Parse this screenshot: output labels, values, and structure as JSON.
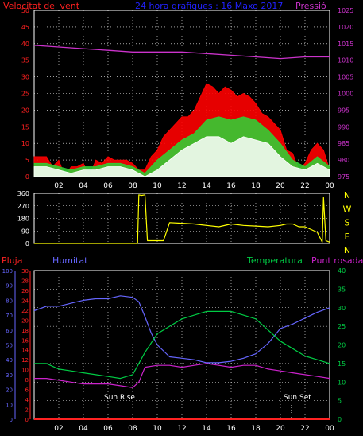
{
  "header": {
    "wind_label": "Velocitat del vent",
    "subtitle": "24 hora grafiques : 16 Maxo 2017",
    "pressure_label": "Pressió"
  },
  "bottom_headers": {
    "rain": "Pluja",
    "humidity": "Humitat",
    "temperature": "Temperatura",
    "dewpoint": "Punt rosada"
  },
  "time_ticks": [
    "02",
    "04",
    "06",
    "08",
    "10",
    "12",
    "14",
    "16",
    "18",
    "20",
    "22",
    "00"
  ],
  "sun": {
    "rise_label": "Sun Rise",
    "set_label": "Sun Set",
    "rise_hour": 6.8,
    "set_hour": 20.9
  },
  "colors": {
    "wind_left": "#ff2020",
    "pressure": "#cc33cc",
    "title": "#2222ff",
    "gust": "#ff0000",
    "avg": "#33cc33",
    "base": "#ffffff",
    "wind_dir": "#ffff00",
    "humidity": "#6666ff",
    "temp": "#00cc44",
    "dew": "#cc22cc",
    "rain": "#ff2222",
    "grid": "#ffffff"
  },
  "chart_data": [
    {
      "type": "line",
      "title": "Velocitat del vent",
      "x_unit": "hour",
      "xlim": [
        0,
        24
      ],
      "ylim_left": [
        0,
        50
      ],
      "yticks_left": [
        0,
        5,
        10,
        15,
        20,
        25,
        30,
        35,
        40,
        45,
        50
      ],
      "ylim_right": [
        975,
        1025
      ],
      "yticks_right": [
        975,
        980,
        985,
        990,
        995,
        1000,
        1005,
        1010,
        1015,
        1020,
        1025
      ],
      "series": [
        {
          "name": "Pressió",
          "axis": "right",
          "color": "#cc33cc",
          "x": [
            0,
            2,
            4,
            6,
            8,
            10,
            12,
            14,
            16,
            18,
            20,
            22,
            24
          ],
          "y": [
            1014.5,
            1014,
            1013.5,
            1013,
            1012.5,
            1012.5,
            1012.5,
            1012,
            1011.5,
            1011,
            1010.5,
            1011,
            1011
          ]
        },
        {
          "name": "",
          "role": "gust",
          "axis": "left",
          "color": "#ff0000",
          "x": [
            0,
            0.5,
            1,
            1.5,
            2,
            2.5,
            3,
            3.5,
            4,
            4.5,
            5,
            5.5,
            6,
            6.5,
            7,
            7.5,
            8,
            8.5,
            9,
            9.5,
            10,
            10.5,
            11,
            11.5,
            12,
            12.5,
            13,
            13.5,
            14,
            14.5,
            15,
            15.5,
            16,
            16.5,
            17,
            17.5,
            18,
            18.5,
            19,
            19.5,
            20,
            20.5,
            21,
            21.5,
            22,
            22.5,
            23,
            23.5,
            24
          ],
          "y": [
            6,
            6,
            6,
            3,
            5,
            0,
            3,
            3,
            4,
            0,
            5,
            4,
            6,
            5,
            5,
            5,
            4,
            2,
            2,
            6,
            8,
            12,
            14,
            16,
            18,
            18,
            20,
            24,
            28,
            27,
            25,
            27,
            26,
            24,
            25,
            24,
            22,
            19,
            18,
            16,
            14,
            8,
            7,
            2,
            4,
            8,
            10,
            8,
            2
          ]
        },
        {
          "name": "",
          "role": "average",
          "axis": "left",
          "color": "#33cc33",
          "x": [
            0,
            1,
            2,
            3,
            4,
            5,
            6,
            7,
            8,
            9,
            10,
            11,
            12,
            13,
            14,
            15,
            16,
            17,
            18,
            19,
            20,
            21,
            22,
            23,
            24
          ],
          "y": [
            4,
            4,
            3,
            2,
            3,
            3,
            4,
            4,
            3,
            1,
            5,
            8,
            11,
            13,
            17,
            18,
            17,
            18,
            17,
            14,
            10,
            5,
            3,
            6,
            3
          ]
        },
        {
          "name": "",
          "role": "base",
          "axis": "left",
          "color": "#ffffff",
          "x": [
            0,
            1,
            2,
            3,
            4,
            5,
            6,
            7,
            8,
            9,
            10,
            11,
            12,
            13,
            14,
            15,
            16,
            17,
            18,
            19,
            20,
            21,
            22,
            23,
            24
          ],
          "y": [
            3,
            3,
            2,
            1,
            2,
            2,
            3,
            3,
            2,
            0,
            2,
            5,
            8,
            10,
            12,
            12,
            10,
            12,
            11,
            10,
            6,
            3,
            2,
            4,
            2
          ]
        }
      ]
    },
    {
      "type": "line",
      "title": "",
      "x_unit": "hour",
      "xlim": [
        0,
        24
      ],
      "ylim": [
        0,
        360
      ],
      "yticks": [
        0,
        90,
        180,
        270,
        360
      ],
      "cardinals_right": [
        "N",
        "W",
        "S",
        "E",
        "N"
      ],
      "series": [
        {
          "name": "",
          "color": "#ffff00",
          "x": [
            0,
            8.4,
            8.5,
            8.7,
            9.0,
            9.2,
            10.5,
            11,
            12,
            13,
            14,
            15,
            16,
            17,
            18,
            19,
            20,
            20.5,
            21,
            21.5,
            22,
            22.5,
            23,
            23.4,
            23.5,
            23.7,
            24
          ],
          "y": [
            0,
            0,
            350,
            345,
            350,
            20,
            20,
            150,
            145,
            140,
            130,
            120,
            140,
            130,
            125,
            120,
            130,
            140,
            140,
            120,
            120,
            100,
            80,
            10,
            330,
            20,
            10
          ]
        }
      ]
    },
    {
      "type": "line",
      "title": "",
      "x_unit": "hour",
      "xlim": [
        0,
        24
      ],
      "ylim_left": [
        0,
        100
      ],
      "yticks_humidity": [
        0,
        10,
        20,
        30,
        40,
        50,
        60,
        70,
        80,
        90,
        100
      ],
      "yticks_rain": [
        0,
        2,
        4,
        6,
        8,
        10,
        12,
        14,
        16,
        18,
        20,
        22,
        24,
        26,
        28,
        30
      ],
      "ylim_right": [
        0,
        40
      ],
      "yticks_right": [
        0,
        5,
        10,
        15,
        20,
        25,
        30,
        35,
        40
      ],
      "series": [
        {
          "name": "Humitat",
          "axis": "left",
          "color": "#6666ff",
          "x": [
            0,
            1,
            2,
            3,
            4,
            5,
            6,
            7,
            8,
            8.5,
            9,
            9.5,
            10,
            11,
            12,
            13,
            14,
            15,
            16,
            17,
            18,
            19,
            20,
            21,
            22,
            23,
            24
          ],
          "y": [
            73,
            76,
            76,
            78,
            80,
            81,
            81,
            83,
            82,
            79,
            69,
            58,
            50,
            42,
            41,
            40,
            38,
            38,
            39,
            41,
            44,
            51,
            61,
            64,
            68,
            72,
            75
          ]
        },
        {
          "name": "Temperatura",
          "axis": "right",
          "color": "#00cc44",
          "x": [
            0,
            1,
            2,
            3,
            4,
            5,
            6,
            7,
            8,
            9,
            10,
            11,
            12,
            13,
            14,
            15,
            16,
            17,
            18,
            19,
            20,
            21,
            22,
            23,
            24
          ],
          "y": [
            15,
            15,
            13.5,
            13,
            12.5,
            12,
            11.5,
            11,
            12,
            18,
            23,
            25,
            27,
            28,
            29,
            29,
            29,
            28,
            27,
            24,
            21,
            19,
            17,
            16,
            15
          ]
        },
        {
          "name": "Punt rosada",
          "axis": "right",
          "color": "#cc22cc",
          "x": [
            0,
            1,
            2,
            3,
            4,
            5,
            6,
            7,
            8,
            8.5,
            9,
            10,
            11,
            12,
            13,
            14,
            15,
            16,
            17,
            18,
            19,
            20,
            21,
            22,
            23,
            24
          ],
          "y": [
            11,
            11,
            10.5,
            10,
            9.5,
            9.5,
            9.5,
            9,
            8.5,
            10,
            14,
            14.5,
            14.5,
            14,
            14.5,
            15,
            14.5,
            14,
            14.5,
            14.5,
            13.5,
            13,
            12.5,
            12,
            11.5,
            11
          ]
        },
        {
          "name": "Pluja",
          "axis": "left",
          "color": "#ff2222",
          "x": [
            0,
            24
          ],
          "y": [
            0,
            0
          ]
        }
      ]
    }
  ]
}
